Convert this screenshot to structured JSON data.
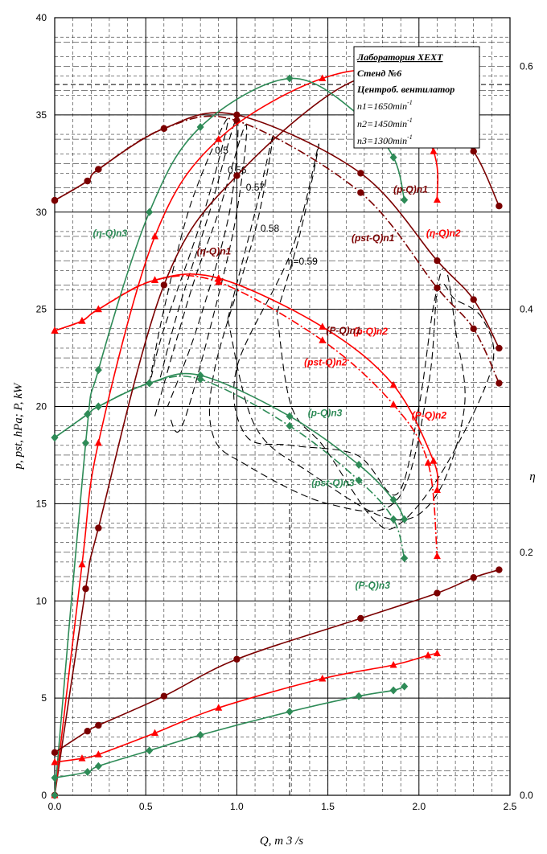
{
  "chart_data": {
    "type": "line",
    "xlabel": "Q, m 3 /s",
    "ylabel": "p, pst, hPa; P, kW",
    "y2label": "η",
    "xlim": [
      0,
      2.5
    ],
    "ylim": [
      0,
      40
    ],
    "y2lim": [
      0,
      0.64
    ],
    "x_ticks": [
      "0.0",
      "0.5",
      "1.0",
      "1.5",
      "2.0",
      "2.5"
    ],
    "y_ticks": [
      "0",
      "5",
      "10",
      "15",
      "20",
      "25",
      "30",
      "35",
      "40"
    ],
    "y2_ticks": [
      "0.0",
      "0.2",
      "0.4",
      "0.6"
    ],
    "grid": true,
    "legend": {
      "position": "top-right",
      "lines": [
        "Лаборатория ХЕХТ",
        "Стенд №6",
        "Центроб. вентилатор",
        "n1=1650min",
        "n2=1450min",
        "n3=1300min"
      ],
      "superscript": "-1"
    },
    "colors": {
      "n1": "#7b0000",
      "n2": "#ff0000",
      "n3": "#2e8b57",
      "iso": "#000000"
    },
    "series": [
      {
        "name": "(p-Q)n1",
        "group": "n1",
        "axis": "left",
        "style": "solid",
        "marker": "circle",
        "x": [
          0,
          0.18,
          0.24,
          0.6,
          1.0,
          1.68,
          2.1,
          2.3,
          2.44
        ],
        "y": [
          30.6,
          31.6,
          32.2,
          34.3,
          35.0,
          32.0,
          27.5,
          25.5,
          23.0
        ]
      },
      {
        "name": "(pst-Q)n1",
        "group": "n1",
        "axis": "left",
        "style": "dashdot",
        "marker": "circle",
        "x": [
          0,
          0.18,
          0.24,
          0.6,
          1.0,
          1.68,
          2.1,
          2.3,
          2.44
        ],
        "y": [
          30.6,
          31.6,
          32.2,
          34.3,
          34.7,
          31.0,
          26.1,
          24.0,
          21.2
        ]
      },
      {
        "name": "(p-Q)n2",
        "group": "n2",
        "axis": "left",
        "style": "solid",
        "marker": "triangle",
        "x": [
          0,
          0.15,
          0.24,
          0.55,
          0.9,
          1.47,
          1.86,
          2.08,
          2.1
        ],
        "y": [
          23.9,
          24.4,
          25.0,
          26.5,
          26.6,
          24.1,
          21.1,
          17.2,
          15.7
        ]
      },
      {
        "name": "(pst-Q)n2",
        "group": "n2",
        "axis": "left",
        "style": "dashdot",
        "marker": "triangle",
        "x": [
          0,
          0.15,
          0.24,
          0.55,
          0.9,
          1.47,
          1.86,
          2.05,
          2.1
        ],
        "y": [
          23.9,
          24.4,
          25.0,
          26.5,
          26.4,
          23.4,
          20.1,
          17.1,
          12.3
        ]
      },
      {
        "name": "(p-Q)n3",
        "group": "n3",
        "axis": "left",
        "style": "solid",
        "marker": "diamond",
        "x": [
          0,
          0.18,
          0.24,
          0.52,
          0.8,
          1.29,
          1.67,
          1.86,
          1.92
        ],
        "y": [
          18.4,
          19.6,
          20.0,
          21.2,
          21.6,
          19.5,
          17.0,
          15.2,
          14.2
        ]
      },
      {
        "name": "(pst-Q)n3",
        "group": "n3",
        "axis": "left",
        "style": "dashdot",
        "marker": "diamond",
        "x": [
          0,
          0.18,
          0.24,
          0.52,
          0.8,
          1.29,
          1.67,
          1.86,
          1.92
        ],
        "y": [
          18.4,
          19.6,
          20.0,
          21.2,
          21.4,
          19.0,
          16.2,
          14.2,
          12.2
        ]
      },
      {
        "name": "(η-Q)n1",
        "group": "n1",
        "axis": "right",
        "style": "solid",
        "marker": "circle",
        "x": [
          0,
          0.17,
          0.24,
          0.6,
          1.0,
          1.68,
          2.1,
          2.3,
          2.44
        ],
        "y": [
          0.0,
          0.17,
          0.22,
          0.42,
          0.51,
          0.59,
          0.56,
          0.53,
          0.485
        ]
      },
      {
        "name": "(η-Q)n2",
        "group": "n2",
        "axis": "right",
        "style": "solid",
        "marker": "triangle",
        "x": [
          0,
          0.15,
          0.24,
          0.55,
          0.9,
          1.47,
          1.86,
          2.08,
          2.1
        ],
        "y": [
          0.0,
          0.19,
          0.29,
          0.46,
          0.54,
          0.59,
          0.59,
          0.53,
          0.49
        ]
      },
      {
        "name": "(η-Q)n3",
        "group": "n3",
        "axis": "right",
        "style": "solid",
        "marker": "diamond",
        "x": [
          0,
          0.17,
          0.24,
          0.52,
          0.8,
          1.29,
          1.67,
          1.86,
          1.92
        ],
        "y": [
          0.0,
          0.29,
          0.35,
          0.48,
          0.55,
          0.59,
          0.56,
          0.525,
          0.49
        ]
      },
      {
        "name": "(P-Q)n1",
        "group": "n1",
        "axis": "left",
        "style": "solid",
        "marker": "circle",
        "x": [
          0,
          0.18,
          0.24,
          0.6,
          1.0,
          1.68,
          2.1,
          2.3,
          2.44
        ],
        "y": [
          2.2,
          3.3,
          3.6,
          5.1,
          7.0,
          9.1,
          10.4,
          11.2,
          11.6
        ]
      },
      {
        "name": "(P-Q)n2",
        "group": "n2",
        "axis": "left",
        "style": "solid",
        "marker": "triangle",
        "x": [
          0,
          0.15,
          0.24,
          0.55,
          0.9,
          1.47,
          1.86,
          2.05,
          2.1
        ],
        "y": [
          1.7,
          1.9,
          2.1,
          3.2,
          4.5,
          6.0,
          6.7,
          7.2,
          7.3
        ]
      },
      {
        "name": "(P-Q)n3",
        "group": "n3",
        "axis": "left",
        "style": "solid",
        "marker": "diamond",
        "x": [
          0,
          0.18,
          0.24,
          0.52,
          0.8,
          1.29,
          1.67,
          1.86,
          1.92
        ],
        "y": [
          0.9,
          1.2,
          1.5,
          2.3,
          3.1,
          4.3,
          5.1,
          5.4,
          5.6
        ]
      }
    ],
    "iso_efficiency": [
      {
        "label": "0.5",
        "points": [
          [
            0.52,
            21.2
          ],
          [
            0.6,
            25.0
          ],
          [
            0.75,
            30.5
          ],
          [
            0.95,
            34.8
          ],
          [
            0.82,
            30.0
          ],
          [
            0.6,
            24.0
          ],
          [
            0.53,
            21.5
          ]
        ]
      },
      {
        "label": "0.56",
        "points": [
          [
            0.58,
            21.5
          ],
          [
            0.68,
            25.0
          ],
          [
            0.85,
            30.0
          ],
          [
            1.0,
            34.8
          ],
          [
            0.96,
            30.0
          ],
          [
            0.78,
            24.0
          ],
          [
            0.62,
            20.0
          ]
        ]
      },
      {
        "label": "0.57",
        "points": [
          [
            0.55,
            19.5
          ],
          [
            0.75,
            26.0
          ],
          [
            0.9,
            30.0
          ],
          [
            1.05,
            34.5
          ],
          [
            1.0,
            30.0
          ],
          [
            0.88,
            25.0
          ],
          [
            0.7,
            19.0
          ],
          [
            0.63,
            19.5
          ]
        ]
      },
      {
        "label": "0.58",
        "points": [
          [
            0.95,
            24.5
          ],
          [
            1.1,
            30.0
          ],
          [
            1.2,
            34.0
          ],
          [
            1.1,
            29.0
          ],
          [
            0.88,
            22.0
          ],
          [
            0.87,
            18.5
          ],
          [
            1.05,
            17.0
          ],
          [
            1.5,
            15.0
          ],
          [
            1.88,
            15.2
          ],
          [
            2.05,
            21.0
          ],
          [
            2.1,
            26.0
          ],
          [
            2.15,
            27.0
          ],
          [
            2.2,
            24.0
          ],
          [
            2.25,
            20.0
          ],
          [
            2.1,
            15.5
          ],
          [
            1.85,
            14.2
          ],
          [
            1.4,
            16.6
          ],
          [
            1.1,
            19.0
          ],
          [
            0.95,
            24.5
          ]
        ]
      },
      {
        "label": "η=0.59",
        "points": [
          [
            1.22,
            24.8
          ],
          [
            1.35,
            29.0
          ],
          [
            1.45,
            33.5
          ],
          [
            1.3,
            28.0
          ],
          [
            1.0,
            22.0
          ],
          [
            1.05,
            18.5
          ],
          [
            1.3,
            18.0
          ],
          [
            1.66,
            17.5
          ],
          [
            1.88,
            15.5
          ],
          [
            2.0,
            20.0
          ],
          [
            2.1,
            26.0
          ],
          [
            2.2,
            25.5
          ],
          [
            2.35,
            24.5
          ],
          [
            2.4,
            22.0
          ],
          [
            2.15,
            17.0
          ],
          [
            1.9,
            14.0
          ],
          [
            1.75,
            14.2
          ],
          [
            1.48,
            17.9
          ],
          [
            1.3,
            20.0
          ],
          [
            1.22,
            24.8
          ]
        ]
      }
    ],
    "horizontal_ref": {
      "axis": "right",
      "value": 0.585
    },
    "vertical_ref": {
      "x": 1.29,
      "from": 0,
      "to": 15.0
    }
  }
}
